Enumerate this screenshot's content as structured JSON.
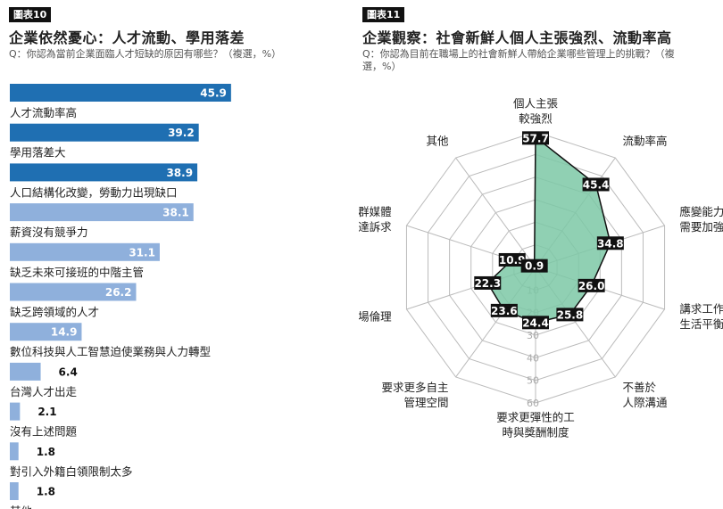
{
  "colors": {
    "dark_blue": "#1f6fb2",
    "light_blue": "#8fb0dc",
    "radar_fill": "#7cc8a6",
    "radar_stroke": "#111111",
    "label_bg": "#111111",
    "grid": "#bbbbbb"
  },
  "left_panel": {
    "tag": "圖表10",
    "title": "企業依然憂心：人才流動、學用落差",
    "question": "Q：你認為當前企業面臨人才短缺的原因有哪些？（複選，%）"
  },
  "right_panel": {
    "tag": "圖表11",
    "title": "企業觀察：社會新鮮人個人主張強烈、流動率高",
    "question": "Q：你認為目前在職場上的社會新鮮人帶給企業哪些管理上的挑戰？（複選，%）"
  },
  "chart_data": [
    {
      "type": "bar",
      "orientation": "horizontal",
      "categories": [
        "人才流動率高",
        "學用落差大",
        "人口結構化改變，勞動力出現缺口",
        "薪資沒有競爭力",
        "缺乏未來可接班的中階主管",
        "缺乏跨領域的人才",
        "數位科技與人工智慧迫使業務與人力轉型",
        "台灣人才出走",
        "沒有上述問題",
        "對引入外籍白領限制太多",
        "其他"
      ],
      "values": [
        45.9,
        39.2,
        38.9,
        38.1,
        31.1,
        26.2,
        14.9,
        6.4,
        2.1,
        1.8,
        1.8
      ],
      "value_labels": [
        "45.9",
        "39.2",
        "38.9",
        "38.1",
        "31.1",
        "26.2",
        "14.9",
        "6.4",
        "2.1",
        "1.8",
        "1.8"
      ],
      "highlight_top": 3,
      "xlim": [
        0,
        50
      ]
    },
    {
      "type": "radar",
      "categories": [
        "個人主張較強烈",
        "流動率高",
        "應變能力需要加強",
        "講求工作與生活平衡",
        "不善於人際溝通",
        "要求更彈性的工時與獎酬制度",
        "要求更多自主管理空間",
        "不懂職場倫理",
        "習慣透過社群媒體表達訴求",
        "其他"
      ],
      "category_lines": [
        [
          "個人主張",
          "較強烈"
        ],
        [
          "流動率高"
        ],
        [
          "應變能力",
          "需要加強"
        ],
        [
          "講求工作與",
          "生活平衡"
        ],
        [
          "不善於",
          "人際溝通"
        ],
        [
          "要求更彈性的工",
          "時與獎酬制度"
        ],
        [
          "要求更多自主",
          "管理空間"
        ],
        [
          "不懂職場倫理"
        ],
        [
          "習慣透過社群媒體",
          "表達訴求"
        ],
        [
          "其他"
        ]
      ],
      "values": [
        57.7,
        45.4,
        34.8,
        26.0,
        25.8,
        24.4,
        23.6,
        22.3,
        10.9,
        0.9
      ],
      "value_labels": [
        "57.7",
        "45.4",
        "34.8",
        "26.0",
        "25.8",
        "24.4",
        "23.6",
        "22.3",
        "10.9",
        "0.9"
      ],
      "rlim": [
        0,
        60
      ],
      "ticks": [
        10,
        20,
        30,
        40,
        50,
        60
      ],
      "tick_labels": [
        "10",
        "20",
        "30",
        "40",
        "50",
        "60"
      ]
    }
  ]
}
